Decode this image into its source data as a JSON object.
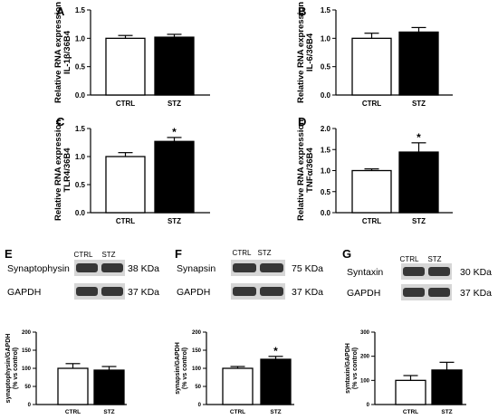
{
  "chart_data": [
    {
      "panel": "A",
      "type": "bar",
      "categories": [
        "CTRL",
        "STZ"
      ],
      "values": [
        1.0,
        1.02
      ],
      "errors": [
        0.05,
        0.05
      ],
      "ylabel": "Relative RNA expression IL-1β/36B4",
      "ylabel_lines": [
        "Relative RNA expression",
        "IL-1β/36B4"
      ],
      "ylim": [
        0,
        1.5
      ],
      "yticks": [
        "0.0",
        "0.5",
        "1.0",
        "1.5"
      ],
      "significance": [
        "",
        ""
      ],
      "colors": [
        "#ffffff",
        "#000000"
      ]
    },
    {
      "panel": "B",
      "type": "bar",
      "categories": [
        "CTRL",
        "STZ"
      ],
      "values": [
        1.0,
        1.11
      ],
      "errors": [
        0.09,
        0.08
      ],
      "ylabel": "Relative RNA expression IL-6/36B4",
      "ylabel_lines": [
        "Relative RNA expression",
        "IL-6/36B4"
      ],
      "ylim": [
        0,
        1.5
      ],
      "yticks": [
        "0.0",
        "0.5",
        "1.0",
        "1.5"
      ],
      "significance": [
        "",
        ""
      ],
      "colors": [
        "#ffffff",
        "#000000"
      ]
    },
    {
      "panel": "C",
      "type": "bar",
      "categories": [
        "CTRL",
        "STZ"
      ],
      "values": [
        1.0,
        1.27
      ],
      "errors": [
        0.07,
        0.07
      ],
      "ylabel": "Relative RNA expression TLR4/36B4",
      "ylabel_lines": [
        "Relative RNA expression",
        "TLR4/36B4"
      ],
      "ylim": [
        0,
        1.5
      ],
      "yticks": [
        "0.0",
        "0.5",
        "1.0",
        "1.5"
      ],
      "significance": [
        "",
        "*"
      ],
      "colors": [
        "#ffffff",
        "#000000"
      ]
    },
    {
      "panel": "D",
      "type": "bar",
      "categories": [
        "CTRL",
        "STZ"
      ],
      "values": [
        1.0,
        1.44
      ],
      "errors": [
        0.04,
        0.22
      ],
      "ylabel": "Relative RNA expression TNFα/36B4",
      "ylabel_lines": [
        "Relative RNA expression",
        "TNFα/36B4"
      ],
      "ylim": [
        0,
        2.0
      ],
      "yticks": [
        "0.0",
        "0.5",
        "1.0",
        "1.5",
        "2.0"
      ],
      "significance": [
        "",
        "*"
      ],
      "colors": [
        "#ffffff",
        "#000000"
      ]
    },
    {
      "panel": "E",
      "type": "bar",
      "categories": [
        "CTRL",
        "STZ"
      ],
      "values": [
        100,
        95
      ],
      "errors": [
        13,
        10
      ],
      "ylabel": "synaptophysin/GAPDH (% vs control)",
      "ylabel_lines": [
        "synaptophysin/GAPDH",
        "(% vs control)"
      ],
      "ylim": [
        0,
        200
      ],
      "yticks": [
        "0",
        "50",
        "100",
        "150",
        "200"
      ],
      "significance": [
        "",
        ""
      ],
      "colors": [
        "#ffffff",
        "#000000"
      ]
    },
    {
      "panel": "F",
      "type": "bar",
      "categories": [
        "CTRL",
        "STZ"
      ],
      "values": [
        100,
        125
      ],
      "errors": [
        5,
        8
      ],
      "ylabel": "synapsin/GAPDH (% vs control)",
      "ylabel_lines": [
        "synapsin/GAPDH",
        "(% vs control)"
      ],
      "ylim": [
        0,
        200
      ],
      "yticks": [
        "0",
        "50",
        "100",
        "150",
        "200"
      ],
      "significance": [
        "",
        "*"
      ],
      "colors": [
        "#ffffff",
        "#000000"
      ]
    },
    {
      "panel": "G",
      "type": "bar",
      "categories": [
        "CTRL",
        "STZ"
      ],
      "values": [
        100,
        143
      ],
      "errors": [
        20,
        32
      ],
      "ylabel": "syntaxin/GAPDH (% vs control)",
      "ylabel_lines": [
        "syntaxin/GAPDH",
        "(% vs control)"
      ],
      "ylim": [
        0,
        300
      ],
      "yticks": [
        "0",
        "100",
        "200",
        "300"
      ],
      "significance": [
        "",
        ""
      ],
      "colors": [
        "#ffffff",
        "#000000"
      ]
    }
  ],
  "blots": [
    {
      "panel": "E",
      "lanes": [
        "CTRL",
        "STZ"
      ],
      "rows": [
        {
          "protein": "Synaptophysin",
          "size": "38 KDa"
        },
        {
          "protein": "GAPDH",
          "size": "37 KDa"
        }
      ]
    },
    {
      "panel": "F",
      "lanes": [
        "CTRL",
        "STZ"
      ],
      "rows": [
        {
          "protein": "Synapsin",
          "size": "75 KDa"
        },
        {
          "protein": "GAPDH",
          "size": "37 KDa"
        }
      ]
    },
    {
      "panel": "G",
      "lanes": [
        "CTRL",
        "STZ"
      ],
      "rows": [
        {
          "protein": "Syntaxin",
          "size": "30 KDa"
        },
        {
          "protein": "GAPDH",
          "size": "37 KDa"
        }
      ]
    }
  ]
}
